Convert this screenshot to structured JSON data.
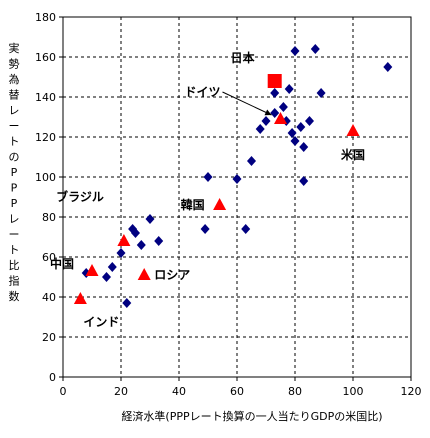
{
  "chart_data": {
    "type": "scatter",
    "title": "",
    "xlabel": "経済水準(PPPレート換算の一人当たりGDPの米国比)",
    "ylabel": "実勢為替レートのPPPレート比指数",
    "xlim": [
      0,
      120
    ],
    "ylim": [
      0,
      180
    ],
    "xticks": [
      "0",
      "20",
      "40",
      "60",
      "80",
      "100",
      "120"
    ],
    "yticks": [
      "0",
      "20",
      "40",
      "60",
      "80",
      "100",
      "120",
      "140",
      "160",
      "180"
    ],
    "grid": true,
    "series": [
      {
        "marker": "diamond",
        "color": "#000080",
        "points": [
          {
            "x": 8,
            "y": 52
          },
          {
            "x": 15,
            "y": 50
          },
          {
            "x": 17,
            "y": 55
          },
          {
            "x": 20,
            "y": 62
          },
          {
            "x": 22,
            "y": 37
          },
          {
            "x": 24,
            "y": 74
          },
          {
            "x": 25,
            "y": 72
          },
          {
            "x": 27,
            "y": 66
          },
          {
            "x": 30,
            "y": 79
          },
          {
            "x": 33,
            "y": 68
          },
          {
            "x": 49,
            "y": 74
          },
          {
            "x": 50,
            "y": 100
          },
          {
            "x": 60,
            "y": 99
          },
          {
            "x": 63,
            "y": 74
          },
          {
            "x": 65,
            "y": 108
          },
          {
            "x": 68,
            "y": 124
          },
          {
            "x": 70,
            "y": 128
          },
          {
            "x": 73,
            "y": 142
          },
          {
            "x": 73,
            "y": 132
          },
          {
            "x": 76,
            "y": 135
          },
          {
            "x": 77,
            "y": 128
          },
          {
            "x": 78,
            "y": 144
          },
          {
            "x": 79,
            "y": 122
          },
          {
            "x": 80,
            "y": 163
          },
          {
            "x": 80,
            "y": 118
          },
          {
            "x": 82,
            "y": 125
          },
          {
            "x": 83,
            "y": 115
          },
          {
            "x": 83,
            "y": 98
          },
          {
            "x": 85,
            "y": 128
          },
          {
            "x": 87,
            "y": 164
          },
          {
            "x": 89,
            "y": 142
          },
          {
            "x": 112,
            "y": 155
          }
        ]
      },
      {
        "marker": "triangle",
        "color": "#ff0000",
        "points": [
          {
            "x": 6,
            "y": 39,
            "label": "インド"
          },
          {
            "x": 10,
            "y": 53,
            "label": "中国"
          },
          {
            "x": 21,
            "y": 68,
            "label": "ブラジル"
          },
          {
            "x": 28,
            "y": 51,
            "label": "ロシア"
          },
          {
            "x": 54,
            "y": 86,
            "label": "韓国"
          },
          {
            "x": 75,
            "y": 129,
            "label": "ドイツ"
          },
          {
            "x": 100,
            "y": 123,
            "label": "米国"
          }
        ]
      },
      {
        "marker": "square",
        "color": "#ff0000",
        "points": [
          {
            "x": 73,
            "y": 148,
            "label": "日本"
          }
        ]
      }
    ]
  }
}
